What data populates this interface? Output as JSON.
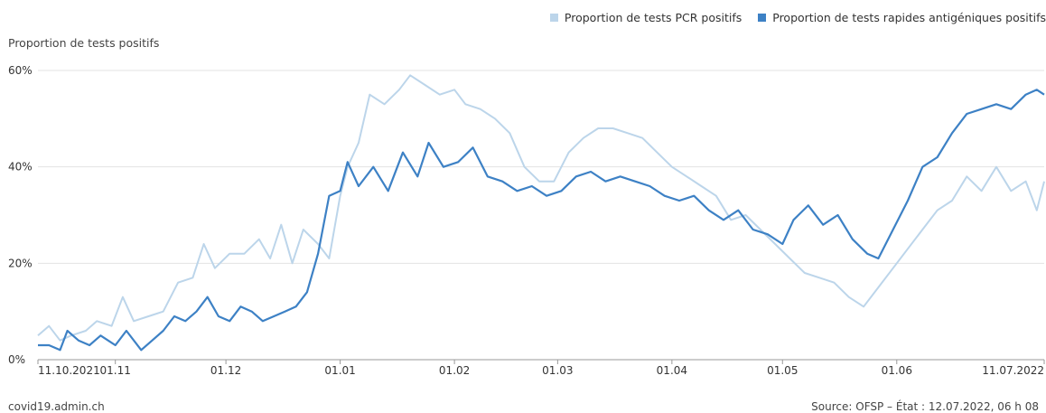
{
  "chart_data": {
    "type": "line",
    "ylabel": "Proportion de tests positifs",
    "ylim": [
      0,
      60
    ],
    "yticks": [
      "0%",
      "20%",
      "40%",
      "60%"
    ],
    "x_range": [
      "2021-10-11",
      "2022-07-11"
    ],
    "xticks": [
      {
        "label": "11.10.2021",
        "date": "2021-10-11"
      },
      {
        "label": "01.11",
        "date": "2021-11-01"
      },
      {
        "label": "01.12",
        "date": "2021-12-01"
      },
      {
        "label": "01.01",
        "date": "2022-01-01"
      },
      {
        "label": "01.02",
        "date": "2022-02-01"
      },
      {
        "label": "01.03",
        "date": "2022-03-01"
      },
      {
        "label": "01.04",
        "date": "2022-04-01"
      },
      {
        "label": "01.05",
        "date": "2022-05-01"
      },
      {
        "label": "01.06",
        "date": "2022-06-01"
      },
      {
        "label": "11.07.2022",
        "date": "2022-07-11"
      }
    ],
    "grid": true,
    "legend_position": "top-right",
    "series": [
      {
        "name": "Proportion de tests PCR positifs",
        "color": "#bcd5ea",
        "points": [
          [
            "2021-10-11",
            5
          ],
          [
            "2021-10-14",
            7
          ],
          [
            "2021-10-17",
            4
          ],
          [
            "2021-10-20",
            5
          ],
          [
            "2021-10-24",
            6
          ],
          [
            "2021-10-27",
            8
          ],
          [
            "2021-10-31",
            7
          ],
          [
            "2021-11-03",
            13
          ],
          [
            "2021-11-06",
            8
          ],
          [
            "2021-11-10",
            9
          ],
          [
            "2021-11-14",
            10
          ],
          [
            "2021-11-18",
            16
          ],
          [
            "2021-11-22",
            17
          ],
          [
            "2021-11-25",
            24
          ],
          [
            "2021-11-28",
            19
          ],
          [
            "2021-12-02",
            22
          ],
          [
            "2021-12-06",
            22
          ],
          [
            "2021-12-10",
            25
          ],
          [
            "2021-12-13",
            21
          ],
          [
            "2021-12-16",
            28
          ],
          [
            "2021-12-19",
            20
          ],
          [
            "2021-12-22",
            27
          ],
          [
            "2021-12-26",
            24
          ],
          [
            "2021-12-29",
            21
          ],
          [
            "2022-01-01",
            34
          ],
          [
            "2022-01-03",
            40
          ],
          [
            "2022-01-06",
            45
          ],
          [
            "2022-01-09",
            55
          ],
          [
            "2022-01-13",
            53
          ],
          [
            "2022-01-17",
            56
          ],
          [
            "2022-01-20",
            59
          ],
          [
            "2022-01-24",
            57
          ],
          [
            "2022-01-28",
            55
          ],
          [
            "2022-02-01",
            56
          ],
          [
            "2022-02-04",
            53
          ],
          [
            "2022-02-08",
            52
          ],
          [
            "2022-02-12",
            50
          ],
          [
            "2022-02-16",
            47
          ],
          [
            "2022-02-20",
            40
          ],
          [
            "2022-02-24",
            37
          ],
          [
            "2022-02-28",
            37
          ],
          [
            "2022-03-04",
            43
          ],
          [
            "2022-03-08",
            46
          ],
          [
            "2022-03-12",
            48
          ],
          [
            "2022-03-16",
            48
          ],
          [
            "2022-03-20",
            47
          ],
          [
            "2022-03-24",
            46
          ],
          [
            "2022-03-28",
            43
          ],
          [
            "2022-04-01",
            40
          ],
          [
            "2022-04-05",
            38
          ],
          [
            "2022-04-09",
            36
          ],
          [
            "2022-04-13",
            34
          ],
          [
            "2022-04-17",
            29
          ],
          [
            "2022-04-21",
            30
          ],
          [
            "2022-04-25",
            27
          ],
          [
            "2022-04-29",
            24
          ],
          [
            "2022-05-03",
            21
          ],
          [
            "2022-05-07",
            18
          ],
          [
            "2022-05-11",
            17
          ],
          [
            "2022-05-15",
            16
          ],
          [
            "2022-05-19",
            13
          ],
          [
            "2022-05-23",
            11
          ],
          [
            "2022-05-27",
            15
          ],
          [
            "2022-05-31",
            19
          ],
          [
            "2022-06-04",
            23
          ],
          [
            "2022-06-08",
            27
          ],
          [
            "2022-06-12",
            31
          ],
          [
            "2022-06-16",
            33
          ],
          [
            "2022-06-20",
            38
          ],
          [
            "2022-06-24",
            35
          ],
          [
            "2022-06-28",
            40
          ],
          [
            "2022-07-02",
            35
          ],
          [
            "2022-07-06",
            37
          ],
          [
            "2022-07-09",
            31
          ],
          [
            "2022-07-11",
            37
          ]
        ]
      },
      {
        "name": "Proportion de tests rapides antigéniques positifs",
        "color": "#3d81c5",
        "points": [
          [
            "2021-10-11",
            3
          ],
          [
            "2021-10-14",
            3
          ],
          [
            "2021-10-17",
            2
          ],
          [
            "2021-10-19",
            6
          ],
          [
            "2021-10-22",
            4
          ],
          [
            "2021-10-25",
            3
          ],
          [
            "2021-10-28",
            5
          ],
          [
            "2021-11-01",
            3
          ],
          [
            "2021-11-04",
            6
          ],
          [
            "2021-11-08",
            2
          ],
          [
            "2021-11-11",
            4
          ],
          [
            "2021-11-14",
            6
          ],
          [
            "2021-11-17",
            9
          ],
          [
            "2021-11-20",
            8
          ],
          [
            "2021-11-23",
            10
          ],
          [
            "2021-11-26",
            13
          ],
          [
            "2021-11-29",
            9
          ],
          [
            "2021-12-02",
            8
          ],
          [
            "2021-12-05",
            11
          ],
          [
            "2021-12-08",
            10
          ],
          [
            "2021-12-11",
            8
          ],
          [
            "2021-12-14",
            9
          ],
          [
            "2021-12-17",
            10
          ],
          [
            "2021-12-20",
            11
          ],
          [
            "2021-12-23",
            14
          ],
          [
            "2021-12-26",
            22
          ],
          [
            "2021-12-29",
            34
          ],
          [
            "2022-01-01",
            35
          ],
          [
            "2022-01-03",
            41
          ],
          [
            "2022-01-06",
            36
          ],
          [
            "2022-01-10",
            40
          ],
          [
            "2022-01-14",
            35
          ],
          [
            "2022-01-18",
            43
          ],
          [
            "2022-01-22",
            38
          ],
          [
            "2022-01-25",
            45
          ],
          [
            "2022-01-29",
            40
          ],
          [
            "2022-02-02",
            41
          ],
          [
            "2022-02-06",
            44
          ],
          [
            "2022-02-10",
            38
          ],
          [
            "2022-02-14",
            37
          ],
          [
            "2022-02-18",
            35
          ],
          [
            "2022-02-22",
            36
          ],
          [
            "2022-02-26",
            34
          ],
          [
            "2022-03-02",
            35
          ],
          [
            "2022-03-06",
            38
          ],
          [
            "2022-03-10",
            39
          ],
          [
            "2022-03-14",
            37
          ],
          [
            "2022-03-18",
            38
          ],
          [
            "2022-03-22",
            37
          ],
          [
            "2022-03-26",
            36
          ],
          [
            "2022-03-30",
            34
          ],
          [
            "2022-04-03",
            33
          ],
          [
            "2022-04-07",
            34
          ],
          [
            "2022-04-11",
            31
          ],
          [
            "2022-04-15",
            29
          ],
          [
            "2022-04-19",
            31
          ],
          [
            "2022-04-23",
            27
          ],
          [
            "2022-04-27",
            26
          ],
          [
            "2022-05-01",
            24
          ],
          [
            "2022-05-04",
            29
          ],
          [
            "2022-05-08",
            32
          ],
          [
            "2022-05-12",
            28
          ],
          [
            "2022-05-16",
            30
          ],
          [
            "2022-05-20",
            25
          ],
          [
            "2022-05-24",
            22
          ],
          [
            "2022-05-27",
            21
          ],
          [
            "2022-05-31",
            27
          ],
          [
            "2022-06-04",
            33
          ],
          [
            "2022-06-08",
            40
          ],
          [
            "2022-06-12",
            42
          ],
          [
            "2022-06-16",
            47
          ],
          [
            "2022-06-20",
            51
          ],
          [
            "2022-06-24",
            52
          ],
          [
            "2022-06-28",
            53
          ],
          [
            "2022-07-02",
            52
          ],
          [
            "2022-07-06",
            55
          ],
          [
            "2022-07-09",
            56
          ],
          [
            "2022-07-11",
            55
          ]
        ]
      }
    ]
  },
  "footer": {
    "source_site": "covid19.admin.ch",
    "status": "Source: OFSP – État : 12.07.2022, 06 h 08"
  }
}
